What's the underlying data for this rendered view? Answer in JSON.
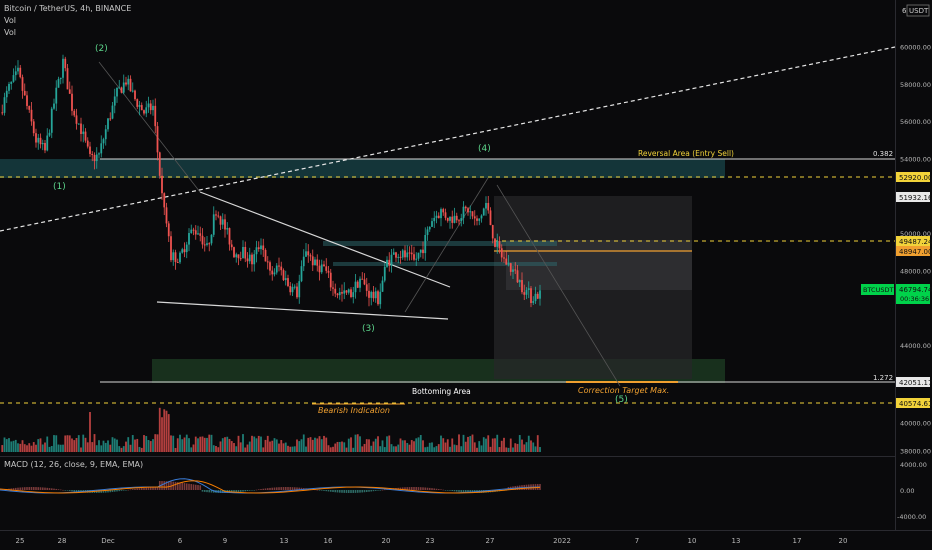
{
  "header": {
    "title": "Bitcoin / TetherUS, 4h, BINANCE",
    "vol1": "Vol",
    "vol2": "Vol",
    "currency": "USDT",
    "currency_prefix": "6"
  },
  "macd": {
    "label": "MACD (12, 26, close, 9, EMA, EMA)",
    "ticks": [
      "4000.00",
      "0.00",
      "-4000.00"
    ]
  },
  "annotations": {
    "reversal": "Reversal Area (Entry Sell)",
    "fib_382": "0.382",
    "bottoming": "Bottoming Area",
    "fib_1272": "1.272",
    "correction": "Correction Target Max.",
    "bearish": "Bearish Indication",
    "wave1": "(1)",
    "wave2": "(2)",
    "wave3": "(3)",
    "wave4": "(4)",
    "wave5": "(5)"
  },
  "price_labels": {
    "p52920": "52920.00",
    "p51932": "51932.16",
    "p49487": "49487.24",
    "p48947": "48947.00",
    "btc": "BTCUSDT",
    "p46794": "46794.74",
    "countdown": "00:36:36",
    "p42051": "42051.17",
    "p40574": "40574.61"
  },
  "colors": {
    "up": "#26a69a",
    "down": "#ef5350",
    "yellow": "#f2d33a",
    "orange": "#f0a030",
    "green_label": "#00d24a",
    "wave": "#5cd48a"
  },
  "chart_data": {
    "type": "candlestick",
    "symbol": "BTCUSDT",
    "timeframe": "4h",
    "x_ticks": [
      "25",
      "28",
      "Dec",
      "6",
      "9",
      "13",
      "16",
      "20",
      "23",
      "27",
      "2022",
      "7",
      "10",
      "13",
      "17",
      "20"
    ],
    "y_ticks": [
      "60000.00",
      "58000.00",
      "56000.00",
      "54000.00",
      "50000.00",
      "48000.00",
      "44000.00",
      "40000.00",
      "38000.00"
    ],
    "ylim": [
      37900,
      61900
    ],
    "levels": {
      "reversal_0382": 54000,
      "yellow_dashed_1": 52920,
      "yellow_dashed_2": 49487,
      "orange_solid": 48947,
      "current": 46794.74,
      "bottoming_1272": 42051,
      "yellow_dashed_3": 40574
    },
    "price_path": [
      {
        "t": 0,
        "p": 56500
      },
      {
        "t": 4,
        "p": 57800
      },
      {
        "t": 8,
        "p": 58600
      },
      {
        "t": 12,
        "p": 56800
      },
      {
        "t": 16,
        "p": 55000
      },
      {
        "t": 20,
        "p": 54400
      },
      {
        "t": 24,
        "p": 57000
      },
      {
        "t": 28,
        "p": 59200
      },
      {
        "t": 32,
        "p": 56800
      },
      {
        "t": 36,
        "p": 55600
      },
      {
        "t": 40,
        "p": 54000
      },
      {
        "t": 44,
        "p": 54200
      },
      {
        "t": 48,
        "p": 56000
      },
      {
        "t": 52,
        "p": 57500
      },
      {
        "t": 56,
        "p": 58200
      },
      {
        "t": 60,
        "p": 57200
      },
      {
        "t": 64,
        "p": 56500
      },
      {
        "t": 68,
        "p": 56800
      },
      {
        "t": 72,
        "p": 52000
      },
      {
        "t": 76,
        "p": 48800
      },
      {
        "t": 80,
        "p": 48700
      },
      {
        "t": 84,
        "p": 50000
      },
      {
        "t": 88,
        "p": 50200
      },
      {
        "t": 92,
        "p": 49200
      },
      {
        "t": 96,
        "p": 51300
      },
      {
        "t": 100,
        "p": 50300
      },
      {
        "t": 104,
        "p": 49000
      },
      {
        "t": 108,
        "p": 49000
      },
      {
        "t": 112,
        "p": 48500
      },
      {
        "t": 116,
        "p": 49600
      },
      {
        "t": 120,
        "p": 47800
      },
      {
        "t": 124,
        "p": 48200
      },
      {
        "t": 128,
        "p": 47300
      },
      {
        "t": 132,
        "p": 46800
      },
      {
        "t": 136,
        "p": 49200
      },
      {
        "t": 140,
        "p": 48300
      },
      {
        "t": 144,
        "p": 48200
      },
      {
        "t": 148,
        "p": 47000
      },
      {
        "t": 152,
        "p": 46700
      },
      {
        "t": 156,
        "p": 46800
      },
      {
        "t": 160,
        "p": 47600
      },
      {
        "t": 164,
        "p": 46800
      },
      {
        "t": 168,
        "p": 46500
      },
      {
        "t": 172,
        "p": 48500
      },
      {
        "t": 176,
        "p": 49000
      },
      {
        "t": 180,
        "p": 48800
      },
      {
        "t": 184,
        "p": 48500
      },
      {
        "t": 188,
        "p": 49300
      },
      {
        "t": 192,
        "p": 50800
      },
      {
        "t": 196,
        "p": 51200
      },
      {
        "t": 200,
        "p": 50800
      },
      {
        "t": 204,
        "p": 51000
      },
      {
        "t": 208,
        "p": 51300
      },
      {
        "t": 212,
        "p": 50500
      },
      {
        "t": 216,
        "p": 51600
      },
      {
        "t": 220,
        "p": 49500
      },
      {
        "t": 224,
        "p": 48600
      },
      {
        "t": 228,
        "p": 48000
      },
      {
        "t": 232,
        "p": 47200
      },
      {
        "t": 236,
        "p": 46600
      },
      {
        "t": 240,
        "p": 46794
      }
    ]
  }
}
